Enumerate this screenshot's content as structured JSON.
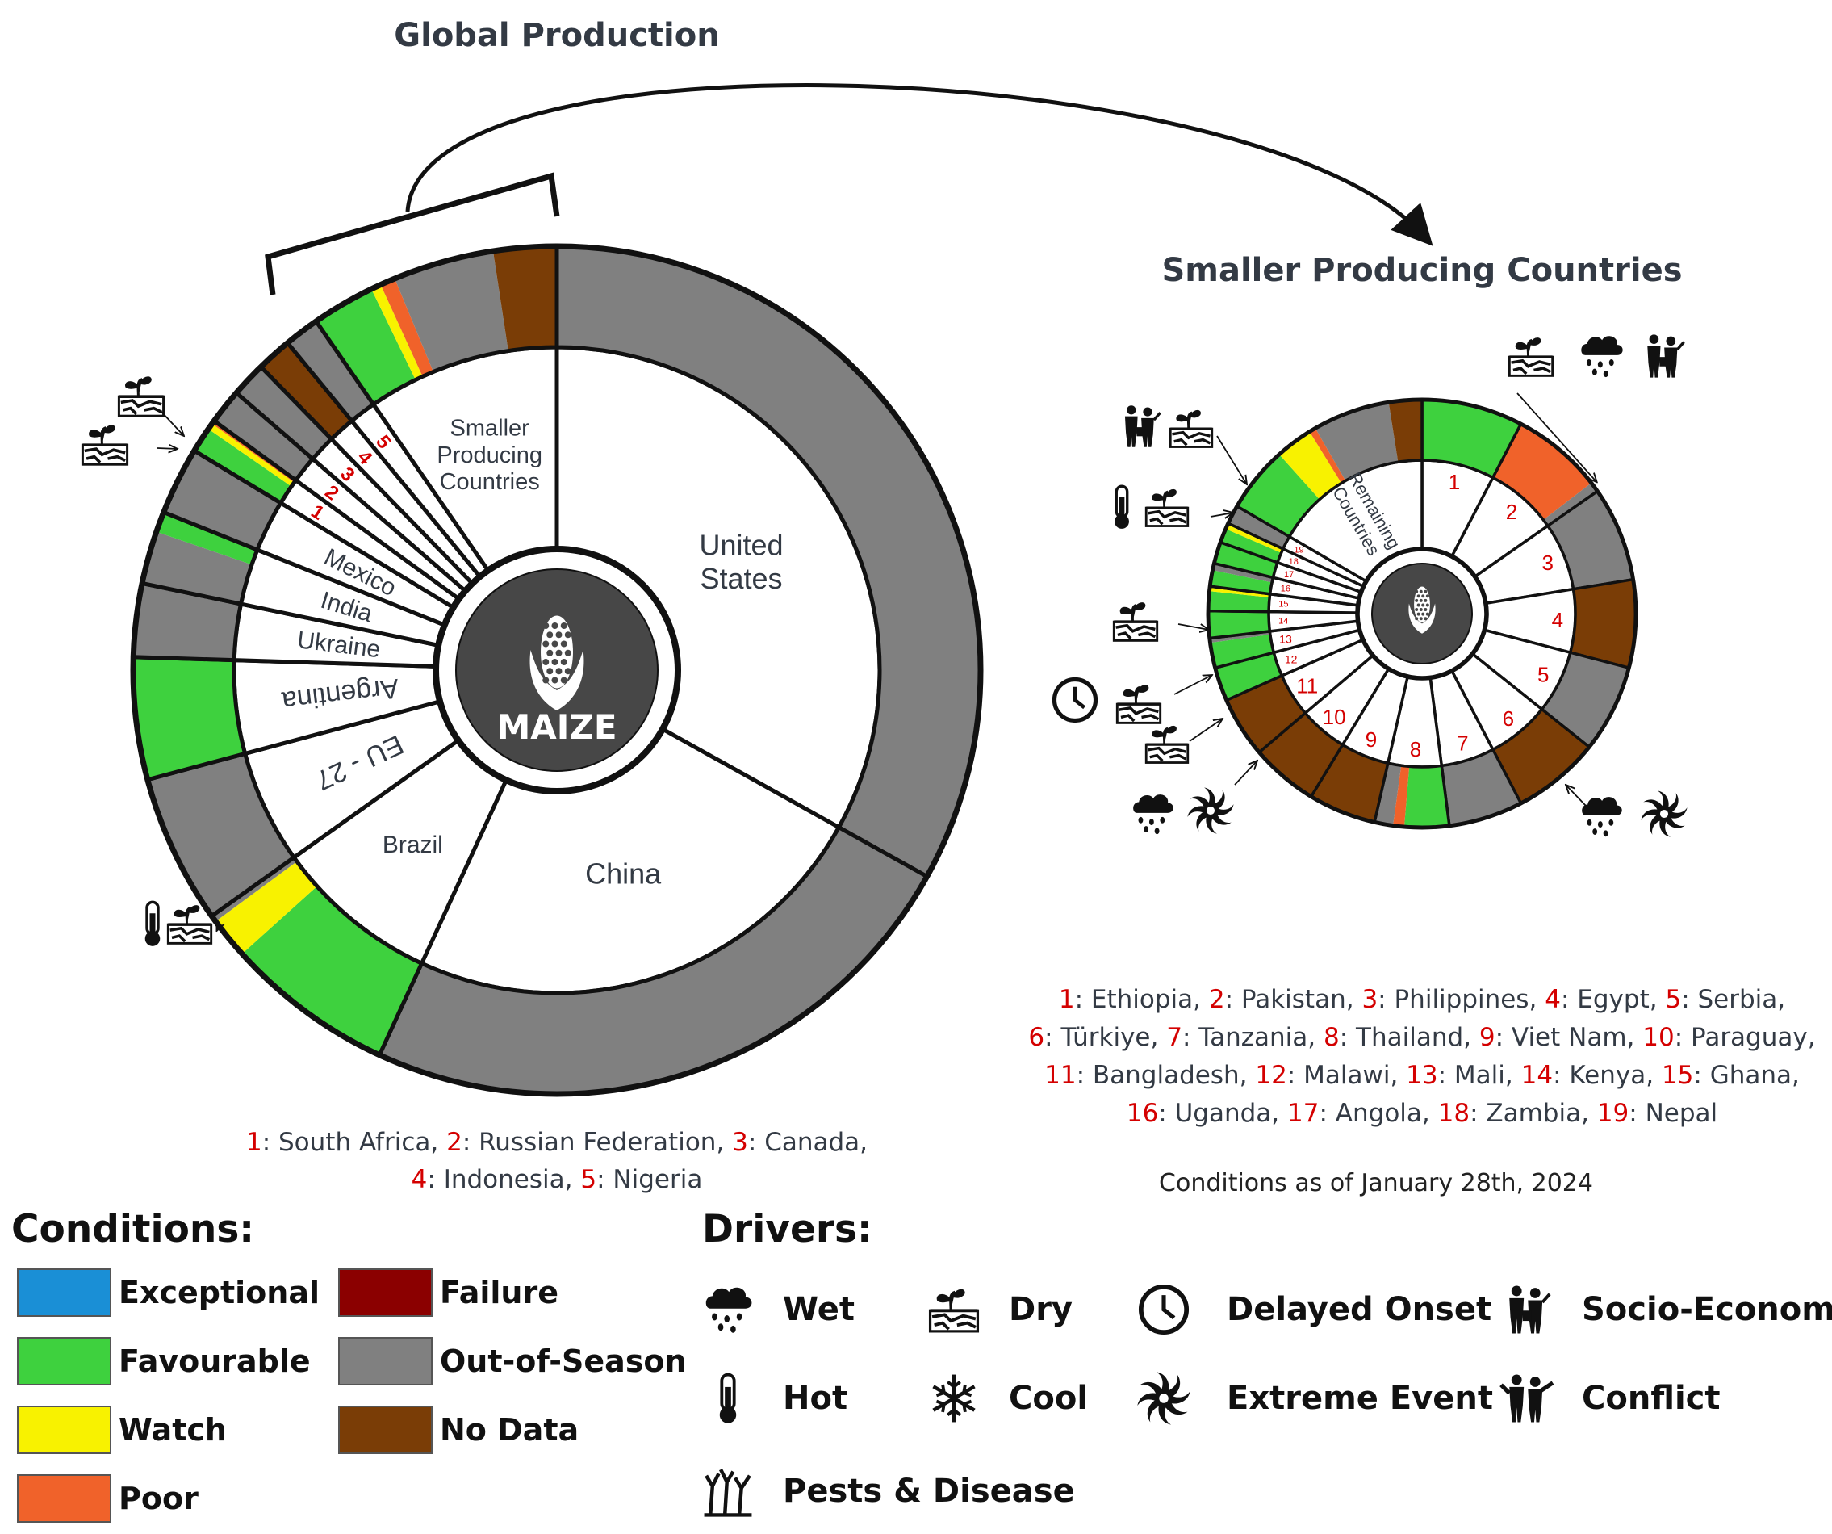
{
  "titles": {
    "global": "Global Production",
    "smaller": "Smaller Producing Countries",
    "date": "Conditions as of January 28th, 2024"
  },
  "colors": {
    "Exceptional": "#1a8fd6",
    "Favourable": "#3ed13e",
    "Watch": "#f8f200",
    "Poor": "#f0622a",
    "Failure": "#8b0000",
    "Out-of-Season": "#808080",
    "No Data": "#7a3d06"
  },
  "center_label": "MAIZE",
  "main_inner": [
    {
      "label": "United States",
      "lines": [
        "United",
        "States"
      ],
      "share": 0.32
    },
    {
      "label": "China",
      "lines": [
        "China"
      ],
      "share": 0.23
    },
    {
      "label": "Brazil",
      "lines": [
        "Brazil"
      ],
      "share": 0.08
    },
    {
      "label": "EU - 27",
      "lines": [
        "EU - 27"
      ],
      "share": 0.055
    },
    {
      "label": "Argentina",
      "lines": [
        "Argentina"
      ],
      "share": 0.045
    },
    {
      "label": "Ukraine",
      "lines": [
        "Ukraine"
      ],
      "share": 0.027
    },
    {
      "label": "India",
      "lines": [
        "India"
      ],
      "share": 0.027
    },
    {
      "label": "Mexico",
      "lines": [
        "Mexico"
      ],
      "share": 0.025
    },
    {
      "label": "1",
      "lines": [
        "1"
      ],
      "share": 0.013,
      "numeric": true
    },
    {
      "label": "2",
      "lines": [
        "2"
      ],
      "share": 0.013,
      "numeric": true
    },
    {
      "label": "3",
      "lines": [
        "3"
      ],
      "share": 0.013,
      "numeric": true
    },
    {
      "label": "4",
      "lines": [
        "4"
      ],
      "share": 0.013,
      "numeric": true
    },
    {
      "label": "5",
      "lines": [
        "5"
      ],
      "share": 0.013,
      "numeric": true
    },
    {
      "label": "Smaller Producing Countries",
      "lines": [
        "Smaller",
        "Producing",
        "Countries"
      ],
      "share": 0.093
    }
  ],
  "main_outer": [
    {
      "country": "United States",
      "parts": [
        {
          "c": "Out-of-Season",
          "f": 1
        }
      ]
    },
    {
      "country": "China",
      "parts": [
        {
          "c": "Out-of-Season",
          "f": 1
        }
      ]
    },
    {
      "country": "Brazil",
      "parts": [
        {
          "c": "Favourable",
          "f": 0.78
        },
        {
          "c": "Watch",
          "f": 0.19
        },
        {
          "c": "Out-of-Season",
          "f": 0.03
        }
      ]
    },
    {
      "country": "EU - 27",
      "parts": [
        {
          "c": "Out-of-Season",
          "f": 1
        }
      ]
    },
    {
      "country": "Argentina",
      "parts": [
        {
          "c": "Favourable",
          "f": 1
        }
      ]
    },
    {
      "country": "Ukraine",
      "parts": [
        {
          "c": "Out-of-Season",
          "f": 1
        }
      ]
    },
    {
      "country": "India",
      "parts": [
        {
          "c": "Out-of-Season",
          "f": 0.72
        },
        {
          "c": "Favourable",
          "f": 0.28
        }
      ]
    },
    {
      "country": "Mexico",
      "parts": [
        {
          "c": "Out-of-Season",
          "f": 1
        }
      ]
    },
    {
      "country": "South Africa",
      "parts": [
        {
          "c": "Favourable",
          "f": 0.72
        },
        {
          "c": "Watch",
          "f": 0.18
        },
        {
          "c": "Poor",
          "f": 0.1
        }
      ]
    },
    {
      "country": "Russian Federation",
      "parts": [
        {
          "c": "Out-of-Season",
          "f": 1
        }
      ]
    },
    {
      "country": "Canada",
      "parts": [
        {
          "c": "Out-of-Season",
          "f": 1
        }
      ]
    },
    {
      "country": "Indonesia",
      "parts": [
        {
          "c": "No Data",
          "f": 1
        }
      ]
    },
    {
      "country": "Nigeria",
      "parts": [
        {
          "c": "Out-of-Season",
          "f": 1
        }
      ]
    },
    {
      "country": "Smaller Producing Countries",
      "parts": [
        {
          "c": "Favourable",
          "f": 0.25
        },
        {
          "c": "Watch",
          "f": 0.04
        },
        {
          "c": "Poor",
          "f": 0.06
        },
        {
          "c": "Out-of-Season",
          "f": 0.4
        },
        {
          "c": "No Data",
          "f": 0.25
        }
      ]
    }
  ],
  "small_inner": [
    {
      "label": "1",
      "share": 0.075
    },
    {
      "label": "2",
      "share": 0.075
    },
    {
      "label": "3",
      "share": 0.07
    },
    {
      "label": "4",
      "share": 0.065
    },
    {
      "label": "5",
      "share": 0.065
    },
    {
      "label": "6",
      "share": 0.065
    },
    {
      "label": "7",
      "share": 0.055
    },
    {
      "label": "8",
      "share": 0.055
    },
    {
      "label": "9",
      "share": 0.05
    },
    {
      "label": "10",
      "share": 0.05
    },
    {
      "label": "11",
      "share": 0.045
    },
    {
      "label": "12",
      "share": 0.025
    },
    {
      "label": "13",
      "share": 0.022
    },
    {
      "label": "14",
      "share": 0.02
    },
    {
      "label": "15",
      "share": 0.018
    },
    {
      "label": "16",
      "share": 0.017
    },
    {
      "label": "17",
      "share": 0.016
    },
    {
      "label": "18",
      "share": 0.015
    },
    {
      "label": "19",
      "share": 0.014
    },
    {
      "label": "Remaining Countries",
      "lines": [
        "Remaining",
        "Countries"
      ],
      "share": 0.163
    }
  ],
  "small_outer": [
    {
      "country": "Ethiopia",
      "parts": [
        {
          "c": "Favourable",
          "f": 1
        }
      ]
    },
    {
      "country": "Pakistan",
      "parts": [
        {
          "c": "Poor",
          "f": 0.9
        },
        {
          "c": "Out-of-Season",
          "f": 0.1
        }
      ]
    },
    {
      "country": "Philippines",
      "parts": [
        {
          "c": "Out-of-Season",
          "f": 1
        }
      ]
    },
    {
      "country": "Egypt",
      "parts": [
        {
          "c": "No Data",
          "f": 1
        }
      ]
    },
    {
      "country": "Serbia",
      "parts": [
        {
          "c": "Out-of-Season",
          "f": 1
        }
      ]
    },
    {
      "country": "Türkiye",
      "parts": [
        {
          "c": "No Data",
          "f": 1
        }
      ]
    },
    {
      "country": "Tanzania",
      "parts": [
        {
          "c": "Out-of-Season",
          "f": 1
        }
      ]
    },
    {
      "country": "Thailand",
      "parts": [
        {
          "c": "Favourable",
          "f": 0.6
        },
        {
          "c": "Poor",
          "f": 0.15
        },
        {
          "c": "Out-of-Season",
          "f": 0.25
        }
      ]
    },
    {
      "country": "Viet Nam",
      "parts": [
        {
          "c": "No Data",
          "f": 1
        }
      ]
    },
    {
      "country": "Paraguay",
      "parts": [
        {
          "c": "No Data",
          "f": 1
        }
      ]
    },
    {
      "country": "Bangladesh",
      "parts": [
        {
          "c": "No Data",
          "f": 1
        }
      ]
    },
    {
      "country": "Malawi",
      "parts": [
        {
          "c": "Favourable",
          "f": 1
        }
      ]
    },
    {
      "country": "Mali",
      "parts": [
        {
          "c": "Favourable",
          "f": 0.85
        },
        {
          "c": "Out-of-Season",
          "f": 0.15
        }
      ]
    },
    {
      "country": "Kenya",
      "parts": [
        {
          "c": "Favourable",
          "f": 1
        }
      ]
    },
    {
      "country": "Ghana",
      "parts": [
        {
          "c": "Favourable",
          "f": 0.8
        },
        {
          "c": "Watch",
          "f": 0.2
        }
      ]
    },
    {
      "country": "Uganda",
      "parts": [
        {
          "c": "Favourable",
          "f": 0.7
        },
        {
          "c": "Out-of-Season",
          "f": 0.3
        }
      ]
    },
    {
      "country": "Angola",
      "parts": [
        {
          "c": "Favourable",
          "f": 1
        }
      ]
    },
    {
      "country": "Zambia",
      "parts": [
        {
          "c": "Favourable",
          "f": 0.7
        },
        {
          "c": "Watch",
          "f": 0.3
        }
      ]
    },
    {
      "country": "Nepal",
      "parts": [
        {
          "c": "Out-of-Season",
          "f": 1
        }
      ]
    },
    {
      "country": "Remaining Countries",
      "parts": [
        {
          "c": "Favourable",
          "f": 0.3
        },
        {
          "c": "Watch",
          "f": 0.17
        },
        {
          "c": "Poor",
          "f": 0.03
        },
        {
          "c": "Out-of-Season",
          "f": 0.35
        },
        {
          "c": "No Data",
          "f": 0.15
        }
      ]
    }
  ],
  "footnote_main": [
    [
      {
        "n": "1",
        "name": "South Africa"
      },
      {
        "n": "2",
        "name": "Russian Federation"
      },
      {
        "n": "3",
        "name": "Canada"
      }
    ],
    [
      {
        "n": "4",
        "name": "Indonesia"
      },
      {
        "n": "5",
        "name": "Nigeria"
      }
    ]
  ],
  "footnote_small": [
    [
      {
        "n": "1",
        "name": "Ethiopia"
      },
      {
        "n": "2",
        "name": "Pakistan"
      },
      {
        "n": "3",
        "name": "Philippines"
      },
      {
        "n": "4",
        "name": "Egypt"
      },
      {
        "n": "5",
        "name": "Serbia"
      }
    ],
    [
      {
        "n": "6",
        "name": "Türkiye"
      },
      {
        "n": "7",
        "name": "Tanzania"
      },
      {
        "n": "8",
        "name": "Thailand"
      },
      {
        "n": "9",
        "name": "Viet Nam"
      },
      {
        "n": "10",
        "name": "Paraguay"
      }
    ],
    [
      {
        "n": "11",
        "name": "Bangladesh"
      },
      {
        "n": "12",
        "name": "Malawi"
      },
      {
        "n": "13",
        "name": "Mali"
      },
      {
        "n": "14",
        "name": "Kenya"
      },
      {
        "n": "15",
        "name": "Ghana"
      }
    ],
    [
      {
        "n": "16",
        "name": "Uganda"
      },
      {
        "n": "17",
        "name": "Angola"
      },
      {
        "n": "18",
        "name": "Zambia"
      },
      {
        "n": "19",
        "name": "Nepal"
      }
    ]
  ],
  "legend": {
    "conditions_title": "Conditions:",
    "conditions": [
      "Exceptional",
      "Favourable",
      "Watch",
      "Poor",
      "Failure",
      "Out-of-Season",
      "No Data"
    ],
    "drivers_title": "Drivers:",
    "drivers": [
      {
        "label": "Wet",
        "icon": "wet-icon"
      },
      {
        "label": "Dry",
        "icon": "dry-icon"
      },
      {
        "label": "Delayed Onset",
        "icon": "delayed-onset-icon"
      },
      {
        "label": "Socio-Economic",
        "icon": "socio-economic-icon"
      },
      {
        "label": "Hot",
        "icon": "hot-icon"
      },
      {
        "label": "Cool",
        "icon": "cool-icon"
      },
      {
        "label": "Extreme Event",
        "icon": "extreme-event-icon"
      },
      {
        "label": "Conflict",
        "icon": "conflict-icon"
      },
      {
        "label": "Pests & Disease",
        "icon": "pests-disease-icon"
      }
    ]
  },
  "annotations": [
    {
      "chart": "main",
      "country": "Brazil",
      "drivers": [
        "hot-icon",
        "dry-icon"
      ]
    },
    {
      "chart": "main",
      "country": "South Africa",
      "drivers": [
        "dry-icon",
        "dry-icon"
      ]
    },
    {
      "chart": "small",
      "country": "Pakistan",
      "drivers": [
        "dry-icon",
        "wet-icon",
        "socio-economic-icon"
      ]
    },
    {
      "chart": "small",
      "country": "Remaining Countries",
      "drivers": [
        "socio-economic-icon",
        "dry-icon",
        "hot-icon",
        "dry-icon"
      ]
    },
    {
      "chart": "small",
      "country": "Nepal",
      "drivers": [
        "dry-icon"
      ]
    },
    {
      "chart": "small",
      "country": "Zambia",
      "drivers": [
        "delayed-onset-icon",
        "dry-icon"
      ]
    },
    {
      "chart": "small",
      "country": "Uganda",
      "drivers": [
        "dry-icon"
      ]
    },
    {
      "chart": "small",
      "country": "Malawi",
      "drivers": [
        "wet-icon",
        "extreme-event-icon"
      ]
    },
    {
      "chart": "small",
      "country": "Thailand",
      "drivers": [
        "wet-icon",
        "extreme-event-icon"
      ]
    }
  ]
}
